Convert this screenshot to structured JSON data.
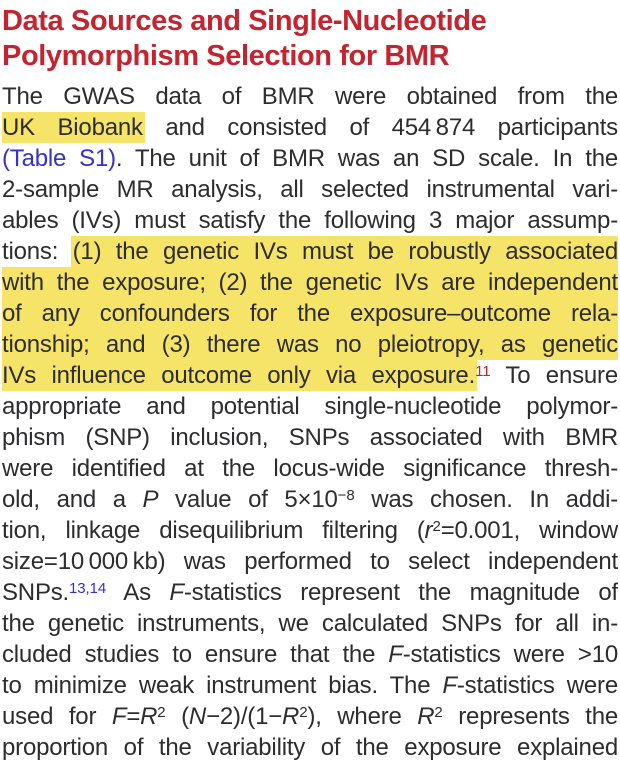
{
  "page": {
    "colors": {
      "background": "#ffffff",
      "heading_red": "#c5242e",
      "body_text": "#2d2d2f",
      "highlight_yellow": "#f5e468",
      "link_blue": "#3431cf",
      "citation_red": "#c5232c"
    },
    "heading": {
      "title": "Data Sources and Single-Nucleotide Polymorphism Selection for BMR",
      "lines": [
        "Data Sources and Single-Nucleotide",
        "Polymorphism Selection for BMR"
      ]
    },
    "body_lines": [
      [
        {
          "t": "The GWAS data of BMR were obtained from the"
        }
      ],
      [
        {
          "t": "UK Biobank",
          "hl": true,
          "name": "highlight-uk-biobank"
        },
        {
          "t": " and consisted of 454 874 participants"
        }
      ],
      [
        {
          "t": "(Table S1)",
          "c": "blue",
          "link": true,
          "name": "table-s1-link"
        },
        {
          "t": ". The unit of BMR was an SD scale. In the"
        }
      ],
      [
        {
          "t": "2-sample MR analysis, all selected instrumental vari-"
        }
      ],
      [
        {
          "t": "ables (IVs) must satisfy the following 3 major assump-"
        }
      ],
      [
        {
          "t": "tions: "
        },
        {
          "t": "(1) the genetic IVs must be robustly associated",
          "hl": true
        }
      ],
      [
        {
          "t": "with the exposure; (2) the genetic IVs are independent",
          "hl": true
        }
      ],
      [
        {
          "t": "of any confounders for the exposure–outcome rela-",
          "hl": true
        }
      ],
      [
        {
          "t": "tionship; and (3) there was no pleiotropy, as genetic",
          "hl": true
        }
      ],
      [
        {
          "t": "IVs influence outcome only via exposure.",
          "hl": true
        },
        {
          "t": "11",
          "sup": true,
          "c": "red",
          "link": true,
          "name": "citation-ref-11"
        },
        {
          "t": " To ensure"
        }
      ],
      [
        {
          "t": "appropriate and potential single-nucleotide polymor-"
        }
      ],
      [
        {
          "t": "phism (SNP) inclusion, SNPs associated with BMR"
        }
      ],
      [
        {
          "t": "were identified at the locus-wide significance thresh-"
        }
      ],
      [
        {
          "t": "old, and a "
        },
        {
          "t": "P",
          "i": true
        },
        {
          "t": " value of 5×10"
        },
        {
          "t": "−8",
          "sup": true
        },
        {
          "t": " was chosen. In addi-"
        }
      ],
      [
        {
          "t": "tion, linkage disequilibrium filtering ("
        },
        {
          "t": "r",
          "i": true
        },
        {
          "t": "2",
          "sup": true
        },
        {
          "t": "=0.001, window"
        }
      ],
      [
        {
          "t": "size=10 000 kb) was performed to select independent"
        }
      ],
      [
        {
          "t": "SNPs."
        },
        {
          "t": "13,14",
          "sup": true,
          "c": "blue",
          "link": true,
          "name": "citation-ref-13-14"
        },
        {
          "t": " As "
        },
        {
          "t": "F",
          "i": true
        },
        {
          "t": "-statistics represent the magnitude of"
        }
      ],
      [
        {
          "t": "the genetic instruments, we calculated SNPs for all in-"
        }
      ],
      [
        {
          "t": "cluded studies to ensure that the "
        },
        {
          "t": "F",
          "i": true
        },
        {
          "t": "-statistics were >10"
        }
      ],
      [
        {
          "t": "to minimize weak instrument bias. The "
        },
        {
          "t": "F",
          "i": true
        },
        {
          "t": "-statistics were"
        }
      ],
      [
        {
          "t": "used for "
        },
        {
          "t": "F",
          "i": true
        },
        {
          "t": "="
        },
        {
          "t": "R",
          "i": true
        },
        {
          "t": "2",
          "sup": true
        },
        {
          "t": " ("
        },
        {
          "t": "N",
          "i": true
        },
        {
          "t": "−2)/(1−"
        },
        {
          "t": "R",
          "i": true
        },
        {
          "t": "2",
          "sup": true
        },
        {
          "t": "), where "
        },
        {
          "t": "R",
          "i": true
        },
        {
          "t": "2",
          "sup": true
        },
        {
          "t": " represents the"
        }
      ],
      [
        {
          "t": "proportion of the variability of the exposure explained"
        }
      ]
    ]
  }
}
